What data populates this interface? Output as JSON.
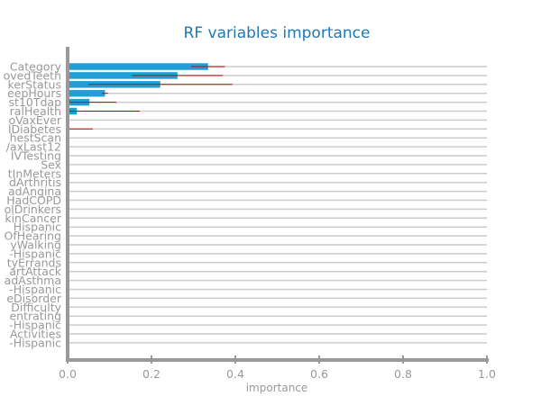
{
  "chart_data": {
    "type": "bar",
    "orientation": "horizontal",
    "title": "RF variables importance",
    "xlabel": "importance",
    "ylabel": "",
    "xlim": [
      0.0,
      1.0
    ],
    "x_ticks": [
      "0.0",
      "0.2",
      "0.4",
      "0.6",
      "0.8",
      "1.0"
    ],
    "grid": "horizontal lines at each category",
    "legend": "none",
    "bar_color": "#1f9fd6",
    "error_color": "#cc0000",
    "axis_color": "#999999",
    "title_color": "#1f77b4",
    "categories": [
      "Category",
      "ovedTeeth",
      "kerStatus",
      "eepHours",
      "st10Tdap",
      "ralHealth",
      "oVaxEver",
      "lDiabetes",
      "hestScan",
      "/axLast12",
      "IVTesting",
      "Sex",
      "tInMeters",
      "dArthritis",
      "adAngina",
      "HadCOPD",
      "olDrinkers",
      "kinCancer",
      "Hispanic",
      "OfHearing",
      "yWalking",
      "-Hispanic",
      "tyErrands",
      "artAttack",
      "adAsthma",
      "-Hispanic",
      "eDisorder",
      "Difficulty",
      "entrating",
      "-Hispanic",
      "Activities",
      "-Hispanic"
    ],
    "values": [
      0.335,
      0.262,
      0.221,
      0.089,
      0.052,
      0.022,
      0.0,
      0.0,
      0.0,
      0.0,
      0.0,
      0.0,
      0.0,
      0.0,
      0.0,
      0.0,
      0.0,
      0.0,
      0.0,
      0.0,
      0.0,
      0.0,
      0.0,
      0.0,
      0.0,
      0.0,
      0.0,
      0.0,
      0.0,
      0.0,
      0.0,
      0.0
    ],
    "errors": [
      0.04,
      0.108,
      0.172,
      0.007,
      0.064,
      0.15,
      0.0,
      0.06,
      0.0,
      0.0,
      0.0,
      0.0,
      0.0,
      0.0,
      0.0,
      0.0,
      0.0,
      0.0,
      0.0,
      0.0,
      0.0,
      0.0,
      0.0,
      0.0,
      0.0,
      0.0,
      0.004,
      0.0,
      0.0,
      0.0,
      0.0,
      0.0
    ]
  }
}
